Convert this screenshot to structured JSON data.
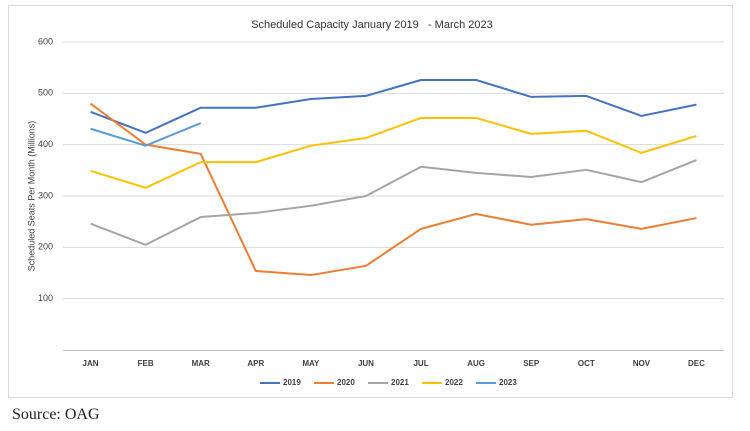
{
  "chart_data": {
    "type": "line",
    "title": "Scheduled Capacity January 2019   - March 2023",
    "y_label": "Scheduled Seats Per Month (Millions)",
    "categories": [
      "JAN",
      "FEB",
      "MAR",
      "APR",
      "MAY",
      "JUN",
      "JUL",
      "AUG",
      "SEP",
      "OCT",
      "NOV",
      "DEC"
    ],
    "series": [
      {
        "name": "2019",
        "color": "#4472c4",
        "values": [
          464,
          423,
          472,
          472,
          489,
          495,
          526,
          526,
          493,
          495,
          456,
          478
        ]
      },
      {
        "name": "2020",
        "color": "#ed7d31",
        "values": [
          480,
          400,
          382,
          154,
          146,
          164,
          236,
          265,
          244,
          255,
          236,
          257
        ]
      },
      {
        "name": "2021",
        "color": "#a5a5a5",
        "values": [
          246,
          205,
          259,
          267,
          281,
          300,
          357,
          345,
          337,
          351,
          327,
          370
        ]
      },
      {
        "name": "2022",
        "color": "#ffc000",
        "values": [
          349,
          316,
          366,
          366,
          398,
          413,
          452,
          452,
          421,
          427,
          384,
          417
        ]
      },
      {
        "name": "2023",
        "color": "#5b9bd5",
        "values": [
          431,
          398,
          442,
          null,
          null,
          null,
          null,
          null,
          null,
          null,
          null,
          null
        ]
      }
    ],
    "ylim": [
      0,
      600
    ],
    "yticks": [
      100,
      200,
      300,
      400,
      500,
      600
    ],
    "grid": true,
    "legend": "bottom"
  },
  "source": "Source: OAG"
}
